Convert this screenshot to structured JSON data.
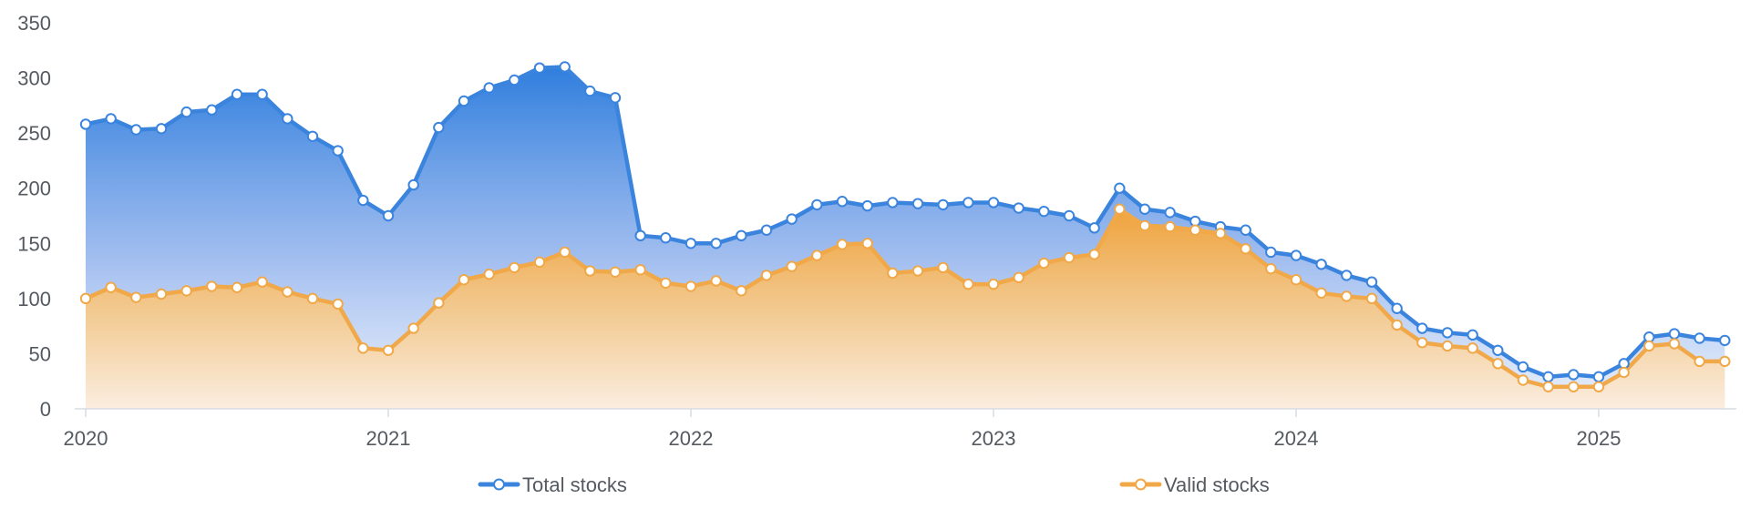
{
  "chart_data": {
    "type": "area",
    "x_ticks": [
      "2020",
      "2021",
      "2022",
      "2023",
      "2024",
      "2025"
    ],
    "y_ticks": [
      "0",
      "50",
      "100",
      "150",
      "200",
      "250",
      "300",
      "350"
    ],
    "ylim": [
      0,
      350
    ],
    "grid": false,
    "legend_position": "bottom",
    "x_start": "2020-01",
    "series": [
      {
        "name": "Total stocks",
        "color": "#3a84de",
        "values": [
          258,
          263,
          253,
          254,
          269,
          271,
          285,
          285,
          263,
          247,
          234,
          189,
          175,
          203,
          255,
          279,
          291,
          298,
          309,
          310,
          288,
          282,
          157,
          155,
          150,
          150,
          157,
          162,
          172,
          185,
          188,
          184,
          187,
          186,
          185,
          187,
          187,
          182,
          179,
          175,
          164,
          200,
          181,
          178,
          170,
          165,
          162,
          142,
          139,
          131,
          121,
          115,
          91,
          73,
          69,
          67,
          53,
          38,
          29,
          31,
          29,
          41,
          65,
          68,
          64,
          62
        ]
      },
      {
        "name": "Valid stocks",
        "color": "#f0a848",
        "values": [
          100,
          110,
          101,
          104,
          107,
          111,
          110,
          115,
          106,
          100,
          95,
          55,
          53,
          73,
          96,
          117,
          122,
          128,
          133,
          142,
          125,
          124,
          126,
          114,
          111,
          116,
          107,
          121,
          129,
          139,
          149,
          150,
          123,
          125,
          128,
          113,
          113,
          119,
          132,
          137,
          140,
          181,
          166,
          165,
          162,
          159,
          145,
          127,
          117,
          105,
          102,
          100,
          76,
          60,
          57,
          55,
          41,
          26,
          20,
          20,
          20,
          33,
          57,
          59,
          43,
          43
        ]
      }
    ]
  }
}
